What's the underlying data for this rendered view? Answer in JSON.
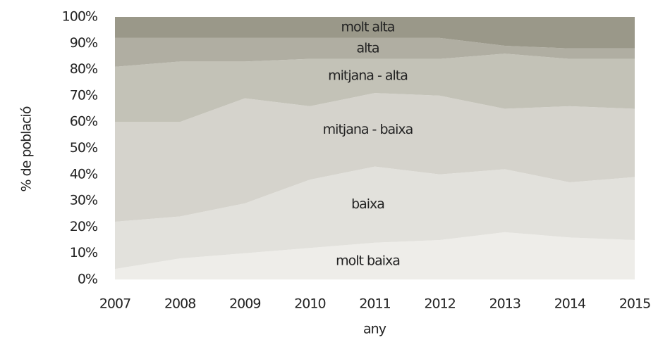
{
  "chart_data": {
    "type": "area",
    "stacked": true,
    "categories": [
      "2007",
      "2008",
      "2009",
      "2010",
      "2011",
      "2012",
      "2013",
      "2014",
      "2015"
    ],
    "series": [
      {
        "name": "molt baixa",
        "color": "#eeede9",
        "values": [
          4,
          8,
          10,
          12,
          14,
          15,
          18,
          16,
          15
        ]
      },
      {
        "name": "baixa",
        "color": "#e2e1dc",
        "values": [
          18,
          16,
          19,
          26,
          29,
          25,
          24,
          21,
          24
        ]
      },
      {
        "name": "mitjana - baixa",
        "color": "#d5d3cc",
        "values": [
          38,
          36,
          40,
          28,
          28,
          30,
          23,
          29,
          26
        ]
      },
      {
        "name": "mitjana - alta",
        "color": "#c3c2b7",
        "values": [
          21,
          23,
          14,
          18,
          13,
          14,
          21,
          18,
          19
        ]
      },
      {
        "name": "alta",
        "color": "#b0aea2",
        "values": [
          11,
          9,
          9,
          8,
          8,
          8,
          3,
          4,
          4
        ]
      },
      {
        "name": "molt alta",
        "color": "#9a9889",
        "values": [
          8,
          8,
          8,
          8,
          8,
          8,
          11,
          12,
          12
        ]
      }
    ],
    "ylabel": "% de població",
    "xlabel": "any",
    "ylim": [
      0,
      100
    ],
    "yticks": [
      {
        "value": 0,
        "label": "0%"
      },
      {
        "value": 10,
        "label": "10%"
      },
      {
        "value": 20,
        "label": "20%"
      },
      {
        "value": 30,
        "label": "30%"
      },
      {
        "value": 40,
        "label": "40%"
      },
      {
        "value": 50,
        "label": "50%"
      },
      {
        "value": 60,
        "label": "60%"
      },
      {
        "value": 70,
        "label": "70%"
      },
      {
        "value": 80,
        "label": "80%"
      },
      {
        "value": 90,
        "label": "90%"
      },
      {
        "value": 100,
        "label": "100%"
      }
    ],
    "grid": false
  }
}
